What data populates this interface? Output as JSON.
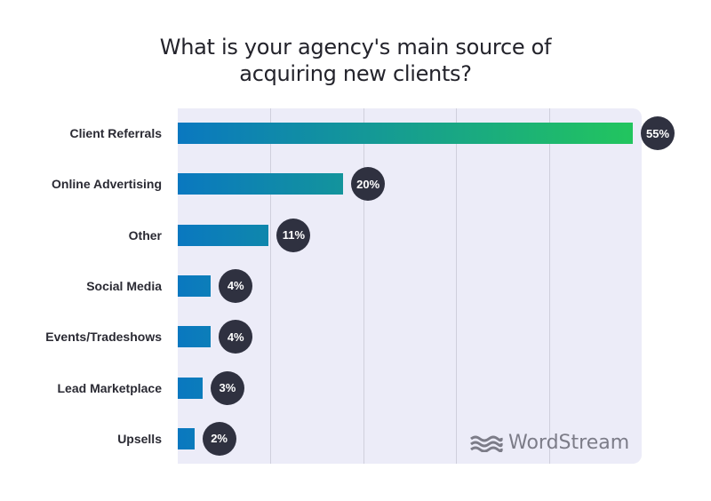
{
  "title_line1": "What is your agency's main source of",
  "title_line2": "acquiring new clients?",
  "logo": {
    "icon": "wave-icon",
    "text": "WordStream"
  },
  "colors": {
    "bar_start": "#0a78c0",
    "bar_end": "#22c55e",
    "badge": "#2f3140",
    "panel": "#ececf8"
  },
  "chart_data": {
    "type": "bar",
    "orientation": "horizontal",
    "title": "What is your agency's main source of acquiring new clients?",
    "categories": [
      "Client Referrals",
      "Online Advertising",
      "Other",
      "Social Media",
      "Events/Tradeshows",
      "Lead Marketplace",
      "Upsells"
    ],
    "values": [
      55,
      20,
      11,
      4,
      4,
      3,
      2
    ],
    "value_labels": [
      "55%",
      "20%",
      "11%",
      "4%",
      "4%",
      "3%",
      "2%"
    ],
    "xlabel": "",
    "ylabel": "",
    "unit": "%",
    "grid": true,
    "legend": null
  }
}
